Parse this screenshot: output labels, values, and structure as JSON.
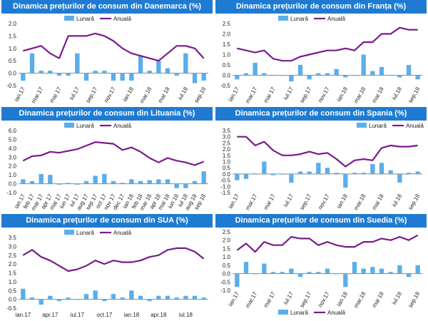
{
  "colors": {
    "header_bg": "#1f7bd1",
    "bar": "#5aaeea",
    "line": "#7a1a8c",
    "axis": "#888888"
  },
  "chart_data": [
    {
      "type": "bar+line",
      "title": "Dinamica prețurilor de consum din Franța (%)",
      "legend": [
        "Lunară",
        "Anuală"
      ],
      "legend_position": "top",
      "legend_right": false,
      "ylim": [
        -0.5,
        2.5
      ],
      "yticks": [
        2.5,
        2.0,
        1.5,
        1.0,
        0.5,
        0.0,
        -0.5
      ],
      "tick_decimals": 1,
      "x_rotated": true,
      "categories": [
        "ian.17",
        "feb.17",
        "mar.17",
        "apr.17",
        "mai 17",
        "iun.17",
        "iul.17",
        "aug.17",
        "sep.17",
        "oct.17",
        "nov.17",
        "dec.17",
        "ian.18",
        "feb.18",
        "mar.18",
        "apr.18",
        "mai 18",
        "iun.18",
        "iul.18",
        "aug.18",
        "sep.18"
      ],
      "xtick_labels": [
        "ian.17",
        "mar.17",
        "mai 17",
        "iul.17",
        "sep.17",
        "nov.17",
        "ian.18",
        "mar.18",
        "mai 18",
        "iul.18",
        "sep.18"
      ],
      "xtick_indices": [
        0,
        2,
        4,
        6,
        8,
        10,
        12,
        14,
        16,
        18,
        20
      ],
      "series": [
        {
          "name": "Lunară",
          "kind": "bar",
          "values": [
            -0.2,
            0.1,
            0.6,
            0.1,
            0.0,
            0.0,
            -0.3,
            0.5,
            -0.2,
            0.1,
            0.1,
            0.3,
            -0.1,
            0.0,
            1.0,
            0.2,
            0.4,
            0.0,
            -0.1,
            0.5,
            -0.2
          ]
        },
        {
          "name": "Anuală",
          "kind": "line",
          "values": [
            1.3,
            1.2,
            1.1,
            1.2,
            0.8,
            0.7,
            0.7,
            0.9,
            1.0,
            1.1,
            1.2,
            1.2,
            1.3,
            1.2,
            1.6,
            1.6,
            2.0,
            2.0,
            2.3,
            2.2,
            2.2
          ]
        }
      ]
    },
    {
      "type": "bar+line",
      "title": "Dinamica prețurilor de consum din Danemarca (%)",
      "legend": [
        "Lunară",
        "Anuală"
      ],
      "legend_position": "top",
      "legend_right": false,
      "ylim": [
        -0.5,
        2.0
      ],
      "yticks": [
        2.0,
        1.5,
        1.0,
        0.5,
        0.0,
        -0.5
      ],
      "tick_decimals": 1,
      "x_rotated": true,
      "categories": [
        "ian.17",
        "feb.17",
        "mar.17",
        "apr.17",
        "mai 17",
        "iun.17",
        "iul.17",
        "aug.17",
        "sep.17",
        "oct.17",
        "nov.17",
        "dec.17",
        "ian.18",
        "feb.18",
        "mar.18",
        "apr.18",
        "mai 18",
        "iun.18",
        "iul.18",
        "aug.18",
        "sep.18"
      ],
      "xtick_labels": [
        "ian.17",
        "mar.17",
        "mai 17",
        "iul.17",
        "sep.17",
        "nov.17",
        "ian.18",
        "mar.18",
        "mai 18",
        "iul.18",
        "sep.18"
      ],
      "xtick_indices": [
        0,
        2,
        4,
        6,
        8,
        10,
        12,
        14,
        16,
        18,
        20
      ],
      "series": [
        {
          "name": "Lunară",
          "kind": "bar",
          "values": [
            -0.3,
            0.8,
            0.1,
            0.1,
            -0.1,
            -0.1,
            0.8,
            -0.3,
            0.1,
            0.1,
            -0.3,
            -0.3,
            -0.3,
            0.7,
            0.1,
            0.5,
            0.2,
            -0.1,
            0.8,
            -0.4,
            -0.3
          ]
        },
        {
          "name": "Anuală",
          "kind": "line",
          "values": [
            0.9,
            1.0,
            1.1,
            0.8,
            0.6,
            1.5,
            1.5,
            1.5,
            1.6,
            1.5,
            1.3,
            1.0,
            0.8,
            0.7,
            0.6,
            0.5,
            0.8,
            1.1,
            1.1,
            1.0,
            0.6
          ]
        }
      ]
    },
    {
      "type": "bar+line",
      "title": "Dinamica prețurilor de consum din Spania (%)",
      "legend": [
        "Lunară",
        "Anuală"
      ],
      "legend_position": "top",
      "legend_right": true,
      "ylim": [
        -1.5,
        3.5
      ],
      "yticks": [
        3.5,
        3.0,
        2.5,
        2.0,
        1.5,
        1.0,
        0.5,
        0.0,
        -0.5,
        -1.0,
        -1.5
      ],
      "tick_decimals": 1,
      "x_rotated": true,
      "categories": [
        "ian.17",
        "feb.17",
        "mar.17",
        "apr.17",
        "mai 17",
        "iun.17",
        "iul.17",
        "aug.17",
        "sep.17",
        "oct.17",
        "nov.17",
        "dec.17",
        "ian.18",
        "feb.18",
        "mar.18",
        "apr.18",
        "mai 18",
        "iun.18",
        "iul.18",
        "aug.18",
        "sep.18"
      ],
      "xtick_labels": [
        "ian.17",
        "mar.17",
        "mai 17",
        "iul.17",
        "sep.17",
        "nov.17",
        "ian.18",
        "mar.18",
        "mai 18",
        "iul.18",
        "sep.18"
      ],
      "xtick_indices": [
        0,
        2,
        4,
        6,
        8,
        10,
        12,
        14,
        16,
        18,
        20
      ],
      "series": [
        {
          "name": "Lunară",
          "kind": "bar",
          "values": [
            -0.5,
            -0.4,
            0.0,
            1.0,
            -0.1,
            0.0,
            -0.7,
            0.2,
            0.2,
            0.9,
            0.5,
            0.1,
            -1.1,
            0.1,
            0.1,
            0.8,
            0.9,
            0.3,
            -0.7,
            0.1,
            0.2
          ]
        },
        {
          "name": "Anuală",
          "kind": "line",
          "values": [
            3.0,
            3.0,
            2.3,
            2.6,
            1.9,
            1.5,
            1.5,
            1.6,
            1.8,
            1.6,
            1.7,
            1.2,
            0.6,
            1.1,
            1.2,
            1.1,
            2.1,
            2.3,
            2.2,
            2.2,
            2.3
          ]
        }
      ]
    },
    {
      "type": "bar+line",
      "title": "Dinamica prețurilor de consum din Lituania (%)",
      "legend": [
        "Lunară",
        "Anuală"
      ],
      "legend_position": "top",
      "legend_right": false,
      "ylim": [
        -1.0,
        6.0
      ],
      "yticks": [
        6.0,
        5.0,
        4.0,
        3.0,
        2.0,
        1.0,
        0.0,
        -1.0
      ],
      "tick_decimals": 1,
      "x_rotated": true,
      "categories": [
        "ian.17",
        "feb 17",
        "mar 17",
        "apr 17",
        "mai 17",
        "iun 17",
        "iul 17",
        "aug 17",
        "sep 17",
        "oct 17",
        "nov 17",
        "dec 17",
        "ian 18",
        "feb 18",
        "mar 18",
        "apr 18",
        "mai 18",
        "iun 18",
        "iul 18",
        "aug 18",
        "sep 18"
      ],
      "xtick_labels": [
        "ian.17",
        "feb 17",
        "mar 17",
        "apr 17",
        "mai 17",
        "iun 17",
        "iul 17",
        "aug 17",
        "sep 17",
        "oct 17",
        "nov 17",
        "dec 17",
        "ian 18",
        "feb 18",
        "mar 18",
        "apr 18",
        "mai 18",
        "iun 18",
        "iul 18",
        "aug 18",
        "sep 18"
      ],
      "xtick_indices": [
        0,
        1,
        2,
        3,
        4,
        5,
        6,
        7,
        8,
        9,
        10,
        11,
        12,
        13,
        14,
        15,
        16,
        17,
        18,
        19,
        20
      ],
      "series": [
        {
          "name": "Lunară",
          "kind": "bar",
          "values": [
            0.5,
            0.3,
            1.1,
            1.0,
            -0.1,
            0.1,
            -0.1,
            0.3,
            0.9,
            1.1,
            0.3,
            0.1,
            0.5,
            0.3,
            0.4,
            0.5,
            0.5,
            -0.5,
            -0.5,
            0.3,
            1.4
          ]
        },
        {
          "name": "Anuală",
          "kind": "line",
          "values": [
            2.6,
            3.1,
            3.2,
            3.6,
            3.5,
            3.7,
            3.9,
            4.3,
            4.7,
            4.6,
            4.5,
            3.8,
            4.1,
            3.6,
            2.9,
            2.4,
            2.9,
            2.6,
            2.4,
            2.1,
            2.5
          ]
        }
      ]
    },
    {
      "type": "bar+line",
      "title": "Dinamica prețurilor de consum din Suedia (%)",
      "legend": [
        "Lunară",
        "Anuală"
      ],
      "legend_position": "bottom",
      "legend_right": false,
      "ylim": [
        -1.0,
        2.5
      ],
      "yticks": [
        2.5,
        2.0,
        1.5,
        1.0,
        0.5,
        0.0,
        -0.5,
        -1.0
      ],
      "tick_decimals": 1,
      "x_rotated": true,
      "categories": [
        "ian.17",
        "feb.17",
        "mar.17",
        "apr.17",
        "mai 17",
        "iun.17",
        "iul.17",
        "aug.17",
        "sep.17",
        "oct.17",
        "nov.17",
        "dec.17",
        "ian.18",
        "feb.18",
        "mar.18",
        "apr.18",
        "mai 18",
        "iun.18",
        "iul.18",
        "aug.18",
        "sep.18"
      ],
      "xtick_labels": [
        "ian.17",
        "mar.17",
        "mai 17",
        "iul.17",
        "sep.17",
        "nov.17",
        "ian.18",
        "mar.18",
        "mai 18",
        "iul.18",
        "sep.18"
      ],
      "xtick_indices": [
        0,
        2,
        4,
        6,
        8,
        10,
        12,
        14,
        16,
        18,
        20
      ],
      "series": [
        {
          "name": "Lunară",
          "kind": "bar",
          "values": [
            -0.8,
            0.7,
            0.0,
            0.6,
            0.1,
            0.1,
            0.3,
            -0.2,
            0.1,
            0.1,
            0.3,
            0.0,
            -0.8,
            0.7,
            0.3,
            0.4,
            0.3,
            0.1,
            0.5,
            -0.2,
            0.5
          ]
        },
        {
          "name": "Anuală",
          "kind": "line",
          "values": [
            1.4,
            1.8,
            1.3,
            1.9,
            1.7,
            1.7,
            2.2,
            2.1,
            2.1,
            1.7,
            1.9,
            1.7,
            1.6,
            1.6,
            1.9,
            1.9,
            2.1,
            2.0,
            2.2,
            2.0,
            2.3
          ]
        }
      ]
    },
    {
      "type": "bar+line",
      "title": "Dinamica prețurilor de consum din SUA (%)",
      "legend": [
        "Lunară",
        "Anuală"
      ],
      "legend_position": "top",
      "legend_right": false,
      "ylim": [
        -0.5,
        3.5
      ],
      "yticks": [
        3.5,
        3.0,
        2.5,
        2.0,
        1.5,
        1.0,
        0.5,
        0.0,
        -0.5
      ],
      "tick_decimals": 1,
      "x_rotated": false,
      "categories": [
        "ian.17",
        "feb.17",
        "mar.17",
        "apr.17",
        "mai.17",
        "iun.17",
        "iul.17",
        "aug.17",
        "sep.17",
        "oct.17",
        "nov.17",
        "dec.17",
        "ian.18",
        "feb.18",
        "mar.18",
        "apr.18",
        "mai.18",
        "iun.18",
        "iul.18",
        "aug.18",
        "sep.18"
      ],
      "xtick_labels": [
        "ian.17",
        "apr.17",
        "iul.17",
        "oct.17",
        "ian.18",
        "apr.18",
        "iul.18"
      ],
      "xtick_indices": [
        0,
        3,
        6,
        9,
        12,
        15,
        18
      ],
      "series": [
        {
          "name": "Lunară",
          "kind": "bar",
          "values": [
            0.6,
            0.1,
            -0.3,
            0.2,
            -0.1,
            0.1,
            0.0,
            0.3,
            0.5,
            -0.1,
            0.3,
            0.1,
            0.5,
            0.2,
            -0.1,
            0.2,
            0.2,
            0.1,
            0.2,
            0.2,
            0.1
          ]
        },
        {
          "name": "Anuală",
          "kind": "line",
          "values": [
            2.5,
            2.8,
            2.4,
            2.2,
            1.9,
            1.6,
            1.7,
            1.9,
            2.2,
            2.0,
            2.2,
            2.1,
            2.1,
            2.2,
            2.4,
            2.5,
            2.8,
            2.9,
            2.9,
            2.7,
            2.3
          ]
        }
      ]
    }
  ]
}
